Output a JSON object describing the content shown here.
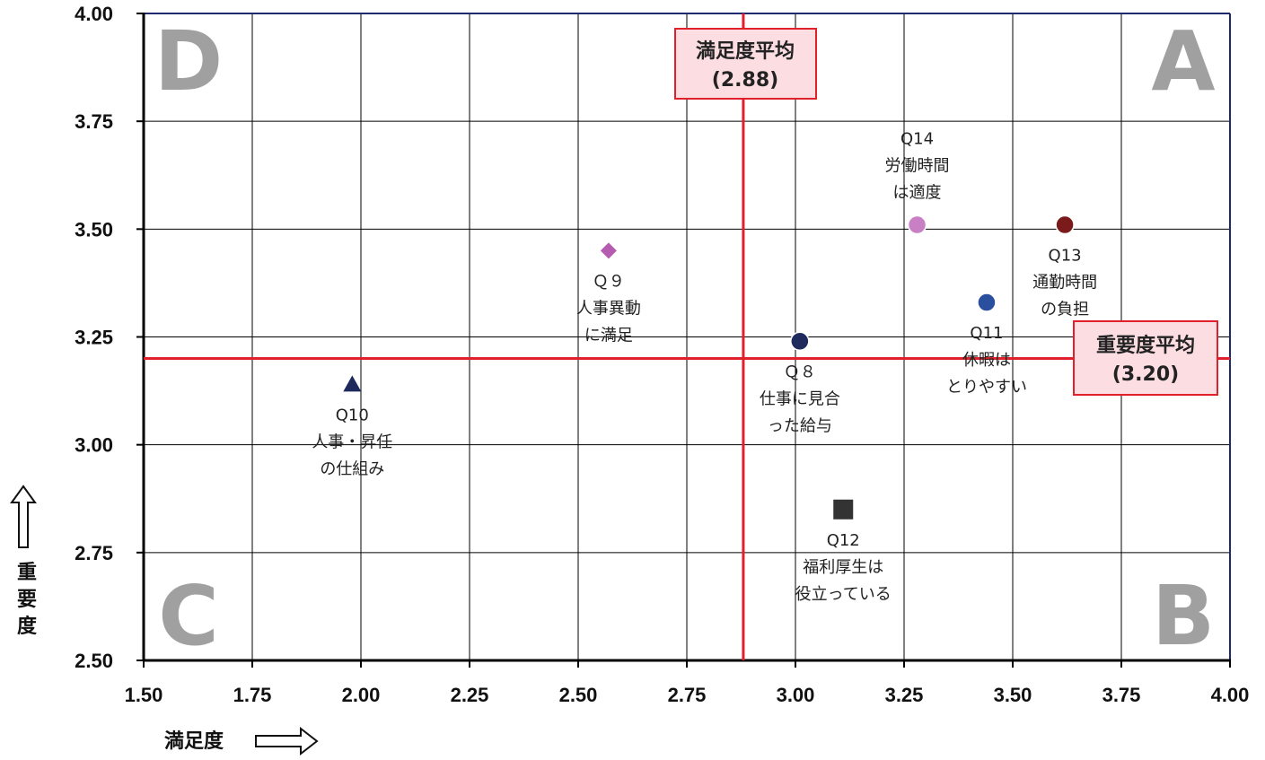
{
  "chart_data": {
    "type": "scatter",
    "title": "",
    "xlabel": "満足度",
    "ylabel": "重要度",
    "xlim": [
      1.5,
      4.0
    ],
    "ylim": [
      2.5,
      4.0
    ],
    "x_ticks": [
      "1.50",
      "1.75",
      "2.00",
      "2.25",
      "2.50",
      "2.75",
      "3.00",
      "3.25",
      "3.50",
      "3.75",
      "4.00"
    ],
    "y_ticks": [
      "2.50",
      "2.75",
      "3.00",
      "3.25",
      "3.50",
      "3.75",
      "4.00"
    ],
    "grid": true,
    "quadrants": [
      "A",
      "B",
      "C",
      "D"
    ],
    "averages": {
      "x": {
        "value": 2.88,
        "label_line1": "満足度平均",
        "label_line2": "(2.88)",
        "color": "#e0202a"
      },
      "y": {
        "value": 3.2,
        "label_line1": "重要度平均",
        "label_line2": "(3.20)",
        "color": "#e0202a"
      }
    },
    "points": [
      {
        "id": "Q8",
        "x": 3.01,
        "y": 3.24,
        "marker": "circle",
        "color": "#1f2a5c",
        "label": [
          "Ｑ８",
          "仕事に見合",
          "った給与"
        ]
      },
      {
        "id": "Q9",
        "x": 2.57,
        "y": 3.45,
        "marker": "diamond",
        "color": "#b55bb0",
        "label": [
          "Ｑ９",
          "人事異動",
          "に満足"
        ]
      },
      {
        "id": "Q10",
        "x": 1.98,
        "y": 3.14,
        "marker": "triangle",
        "color": "#1f2a5c",
        "label": [
          "Q10",
          "人事・昇任",
          "の仕組み"
        ]
      },
      {
        "id": "Q11",
        "x": 3.44,
        "y": 3.33,
        "marker": "circle",
        "color": "#2a4f9e",
        "label": [
          "Q11",
          "休暇は",
          "とりやすい"
        ]
      },
      {
        "id": "Q12",
        "x": 3.11,
        "y": 2.85,
        "marker": "square",
        "color": "#333333",
        "label": [
          "Q12",
          "福利厚生は",
          "役立っている"
        ]
      },
      {
        "id": "Q13",
        "x": 3.62,
        "y": 3.51,
        "marker": "circle",
        "color": "#7a1a1a",
        "label": [
          "Q13",
          "通勤時間",
          "の負担"
        ]
      },
      {
        "id": "Q14",
        "x": 3.28,
        "y": 3.51,
        "marker": "circle",
        "color": "#c97fc4",
        "label": [
          "Q14",
          "労働時間",
          "は適度"
        ]
      }
    ]
  }
}
